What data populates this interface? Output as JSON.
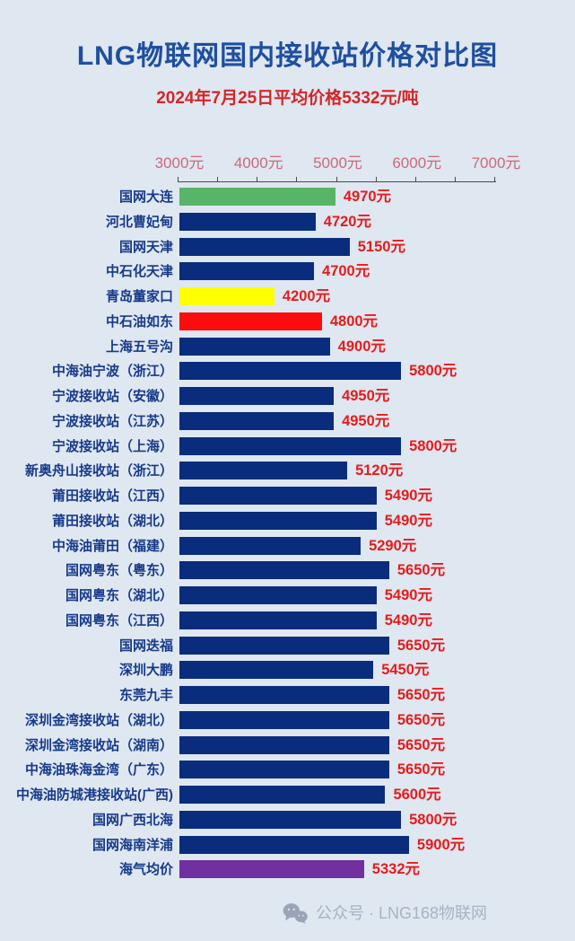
{
  "page": {
    "background": "#dfe7f1"
  },
  "header": {
    "title": "LNG物联网国内接收站价格对比图",
    "title_color": "#1e4fa0",
    "subtitle": "2024年7月25日平均价格5332元/吨",
    "subtitle_color": "#d42628"
  },
  "chart_data": {
    "type": "bar",
    "orientation": "horizontal",
    "title": "LNG物联网国内接收站价格对比图",
    "subtitle": "2024年7月25日平均价格5332元/吨",
    "unit": "元",
    "xlim": [
      3000,
      7000
    ],
    "axis_tick_step": 500,
    "axis_labels": [
      "3000元",
      "4000元",
      "5000元",
      "6000元",
      "7000元"
    ],
    "axis_label_color": "#ca6a78",
    "axis_line_color": "#4a4a4a",
    "grid": false,
    "legend": false,
    "categories": [
      "国网大连",
      "河北曹妃甸",
      "国网天津",
      "中石化天津",
      "青岛董家口",
      "中石油如东",
      "上海五号沟",
      "中海油宁波（浙江）",
      "宁波接收站（安徽）",
      "宁波接收站（江苏）",
      "宁波接收站（上海）",
      "新奥舟山接收站（浙江）",
      "莆田接收站（江西）",
      "莆田接收站（湖北）",
      "中海油莆田（福建）",
      "国网粤东（粤东）",
      "国网粤东（湖北）",
      "国网粤东（江西）",
      "国网迭福",
      "深圳大鹏",
      "东莞九丰",
      "深圳金湾接收站（湖北）",
      "深圳金湾接收站（湖南）",
      "中海油珠海金湾（广东）",
      "中海油防城港接收站(广西)",
      "国网广西北海",
      "国网海南洋浦",
      "海气均价"
    ],
    "values": [
      4970,
      4720,
      5150,
      4700,
      4200,
      4800,
      4900,
      5800,
      4950,
      4950,
      5800,
      5120,
      5490,
      5490,
      5290,
      5650,
      5490,
      5490,
      5650,
      5450,
      5650,
      5650,
      5650,
      5650,
      5600,
      5800,
      5900,
      5332
    ],
    "value_labels": [
      "4970元",
      "4720元",
      "5150元",
      "4700元",
      "4200元",
      "4800元",
      "4900元",
      "5800元",
      "4950元",
      "4950元",
      "5800元",
      "5120元",
      "5490元",
      "5490元",
      "5290元",
      "5650元",
      "5490元",
      "5490元",
      "5650元",
      "5450元",
      "5650元",
      "5650元",
      "5650元",
      "5650元",
      "5600元",
      "5800元",
      "5900元",
      "5332元"
    ],
    "bar_colors": [
      "#57b567",
      null,
      null,
      null,
      "#ffff00",
      "#fc0d0d",
      null,
      null,
      null,
      null,
      null,
      null,
      null,
      null,
      null,
      null,
      null,
      null,
      null,
      null,
      null,
      null,
      null,
      null,
      null,
      null,
      null,
      "#7030a0"
    ],
    "default_bar_color": "#0a2c7d",
    "category_label_color": "#173a8a",
    "value_label_color": "#e51c1c"
  },
  "footer": {
    "icon": "wechat-icon",
    "icon_color": "#9aa4b6",
    "text": "公众号 · LNG168物联网",
    "text_color": "#a8b2c2"
  }
}
